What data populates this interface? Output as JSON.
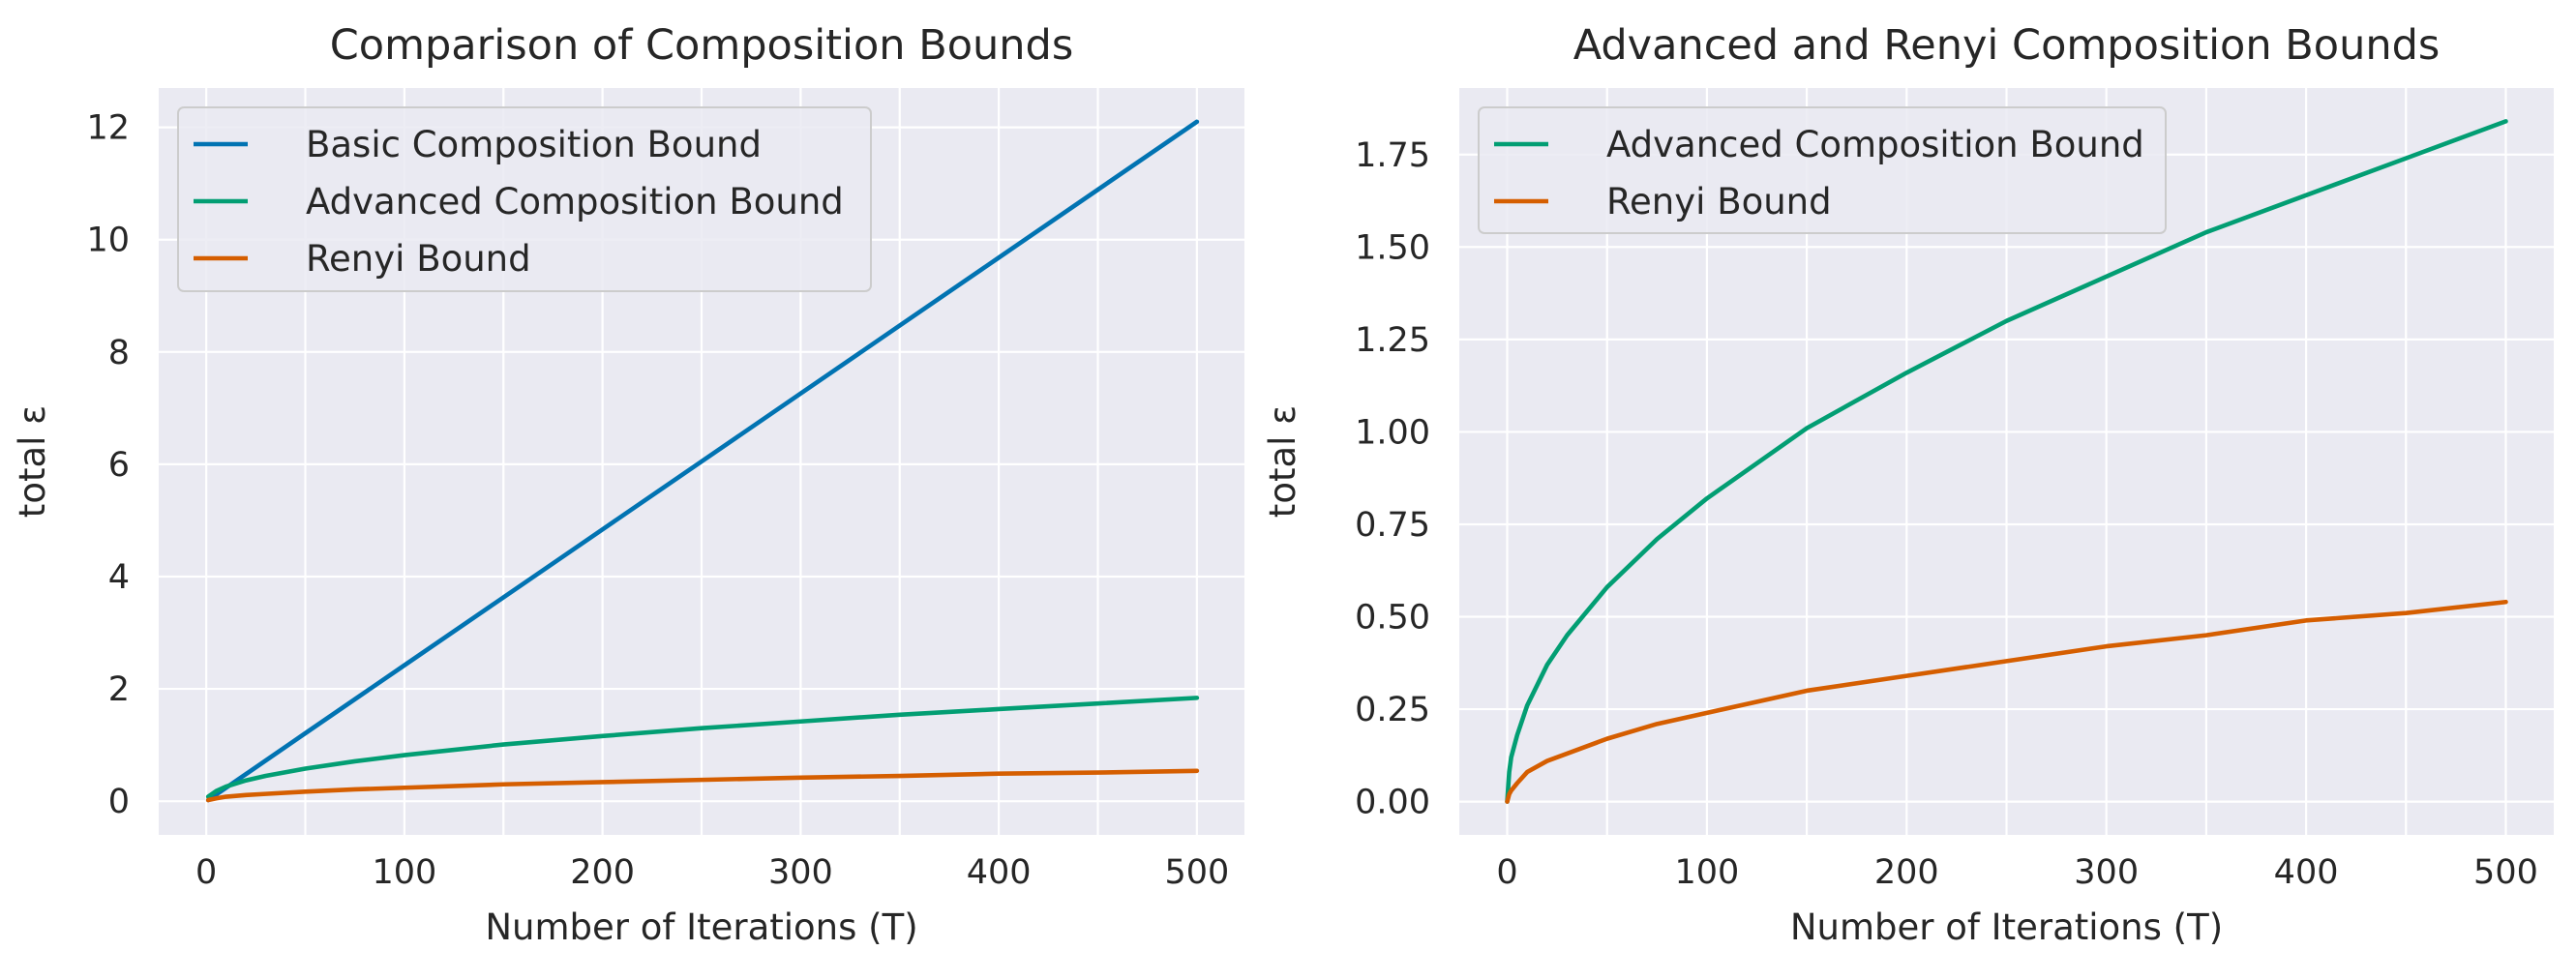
{
  "chart_data": [
    {
      "type": "line",
      "title": "Comparison of Composition Bounds",
      "xlabel": "Number of Iterations (T)",
      "ylabel": "total ε",
      "xlim": [
        -24,
        524
      ],
      "ylim": [
        -0.6,
        12.7
      ],
      "xticks": [
        0,
        100,
        200,
        300,
        400,
        500
      ],
      "yticks": [
        0,
        2,
        4,
        6,
        8,
        10,
        12
      ],
      "grid": true,
      "legend_position": "top-left",
      "series": [
        {
          "name": "Basic Composition Bound",
          "color": "#0173b2",
          "x": [
            1,
            50,
            100,
            150,
            200,
            250,
            300,
            350,
            400,
            450,
            500
          ],
          "values": [
            0.02,
            1.21,
            2.42,
            3.63,
            4.84,
            6.05,
            7.26,
            8.47,
            9.68,
            10.89,
            12.1
          ]
        },
        {
          "name": "Advanced Composition Bound",
          "color": "#029e73",
          "x": [
            1,
            5,
            10,
            20,
            30,
            50,
            75,
            100,
            150,
            200,
            250,
            300,
            350,
            400,
            450,
            500
          ],
          "values": [
            0.08,
            0.18,
            0.26,
            0.37,
            0.45,
            0.58,
            0.71,
            0.82,
            1.01,
            1.16,
            1.3,
            1.42,
            1.54,
            1.64,
            1.74,
            1.84
          ]
        },
        {
          "name": "Renyi Bound",
          "color": "#d55e00",
          "x": [
            1,
            5,
            10,
            20,
            30,
            50,
            75,
            100,
            150,
            200,
            250,
            300,
            350,
            400,
            450,
            500
          ],
          "values": [
            0.02,
            0.05,
            0.08,
            0.11,
            0.13,
            0.17,
            0.21,
            0.24,
            0.3,
            0.34,
            0.38,
            0.42,
            0.45,
            0.49,
            0.51,
            0.54
          ]
        }
      ]
    },
    {
      "type": "line",
      "title": "Advanced and Renyi Composition Bounds",
      "xlabel": "Number of Iterations (T)",
      "ylabel": "total ε",
      "xlim": [
        -24,
        524
      ],
      "ylim": [
        -0.09,
        1.93
      ],
      "xticks": [
        0,
        100,
        200,
        300,
        400,
        500
      ],
      "yticks": [
        0.0,
        0.25,
        0.5,
        0.75,
        1.0,
        1.25,
        1.5,
        1.75
      ],
      "ytick_labels": [
        "0.00",
        "0.25",
        "0.50",
        "0.75",
        "1.00",
        "1.25",
        "1.50",
        "1.75"
      ],
      "grid": true,
      "legend_position": "top-left",
      "series": [
        {
          "name": "Advanced Composition Bound",
          "color": "#029e73",
          "x": [
            0,
            1,
            2,
            5,
            10,
            20,
            30,
            50,
            75,
            100,
            150,
            200,
            250,
            300,
            350,
            400,
            450,
            500
          ],
          "values": [
            0.0,
            0.08,
            0.12,
            0.18,
            0.26,
            0.37,
            0.45,
            0.58,
            0.71,
            0.82,
            1.01,
            1.16,
            1.3,
            1.42,
            1.54,
            1.64,
            1.74,
            1.84
          ]
        },
        {
          "name": "Renyi Bound",
          "color": "#d55e00",
          "x": [
            0,
            1,
            2,
            5,
            10,
            20,
            30,
            50,
            75,
            100,
            150,
            200,
            250,
            300,
            350,
            400,
            450,
            500
          ],
          "values": [
            0.0,
            0.02,
            0.03,
            0.05,
            0.08,
            0.11,
            0.13,
            0.17,
            0.21,
            0.24,
            0.3,
            0.34,
            0.38,
            0.42,
            0.45,
            0.49,
            0.51,
            0.54
          ]
        }
      ]
    }
  ]
}
